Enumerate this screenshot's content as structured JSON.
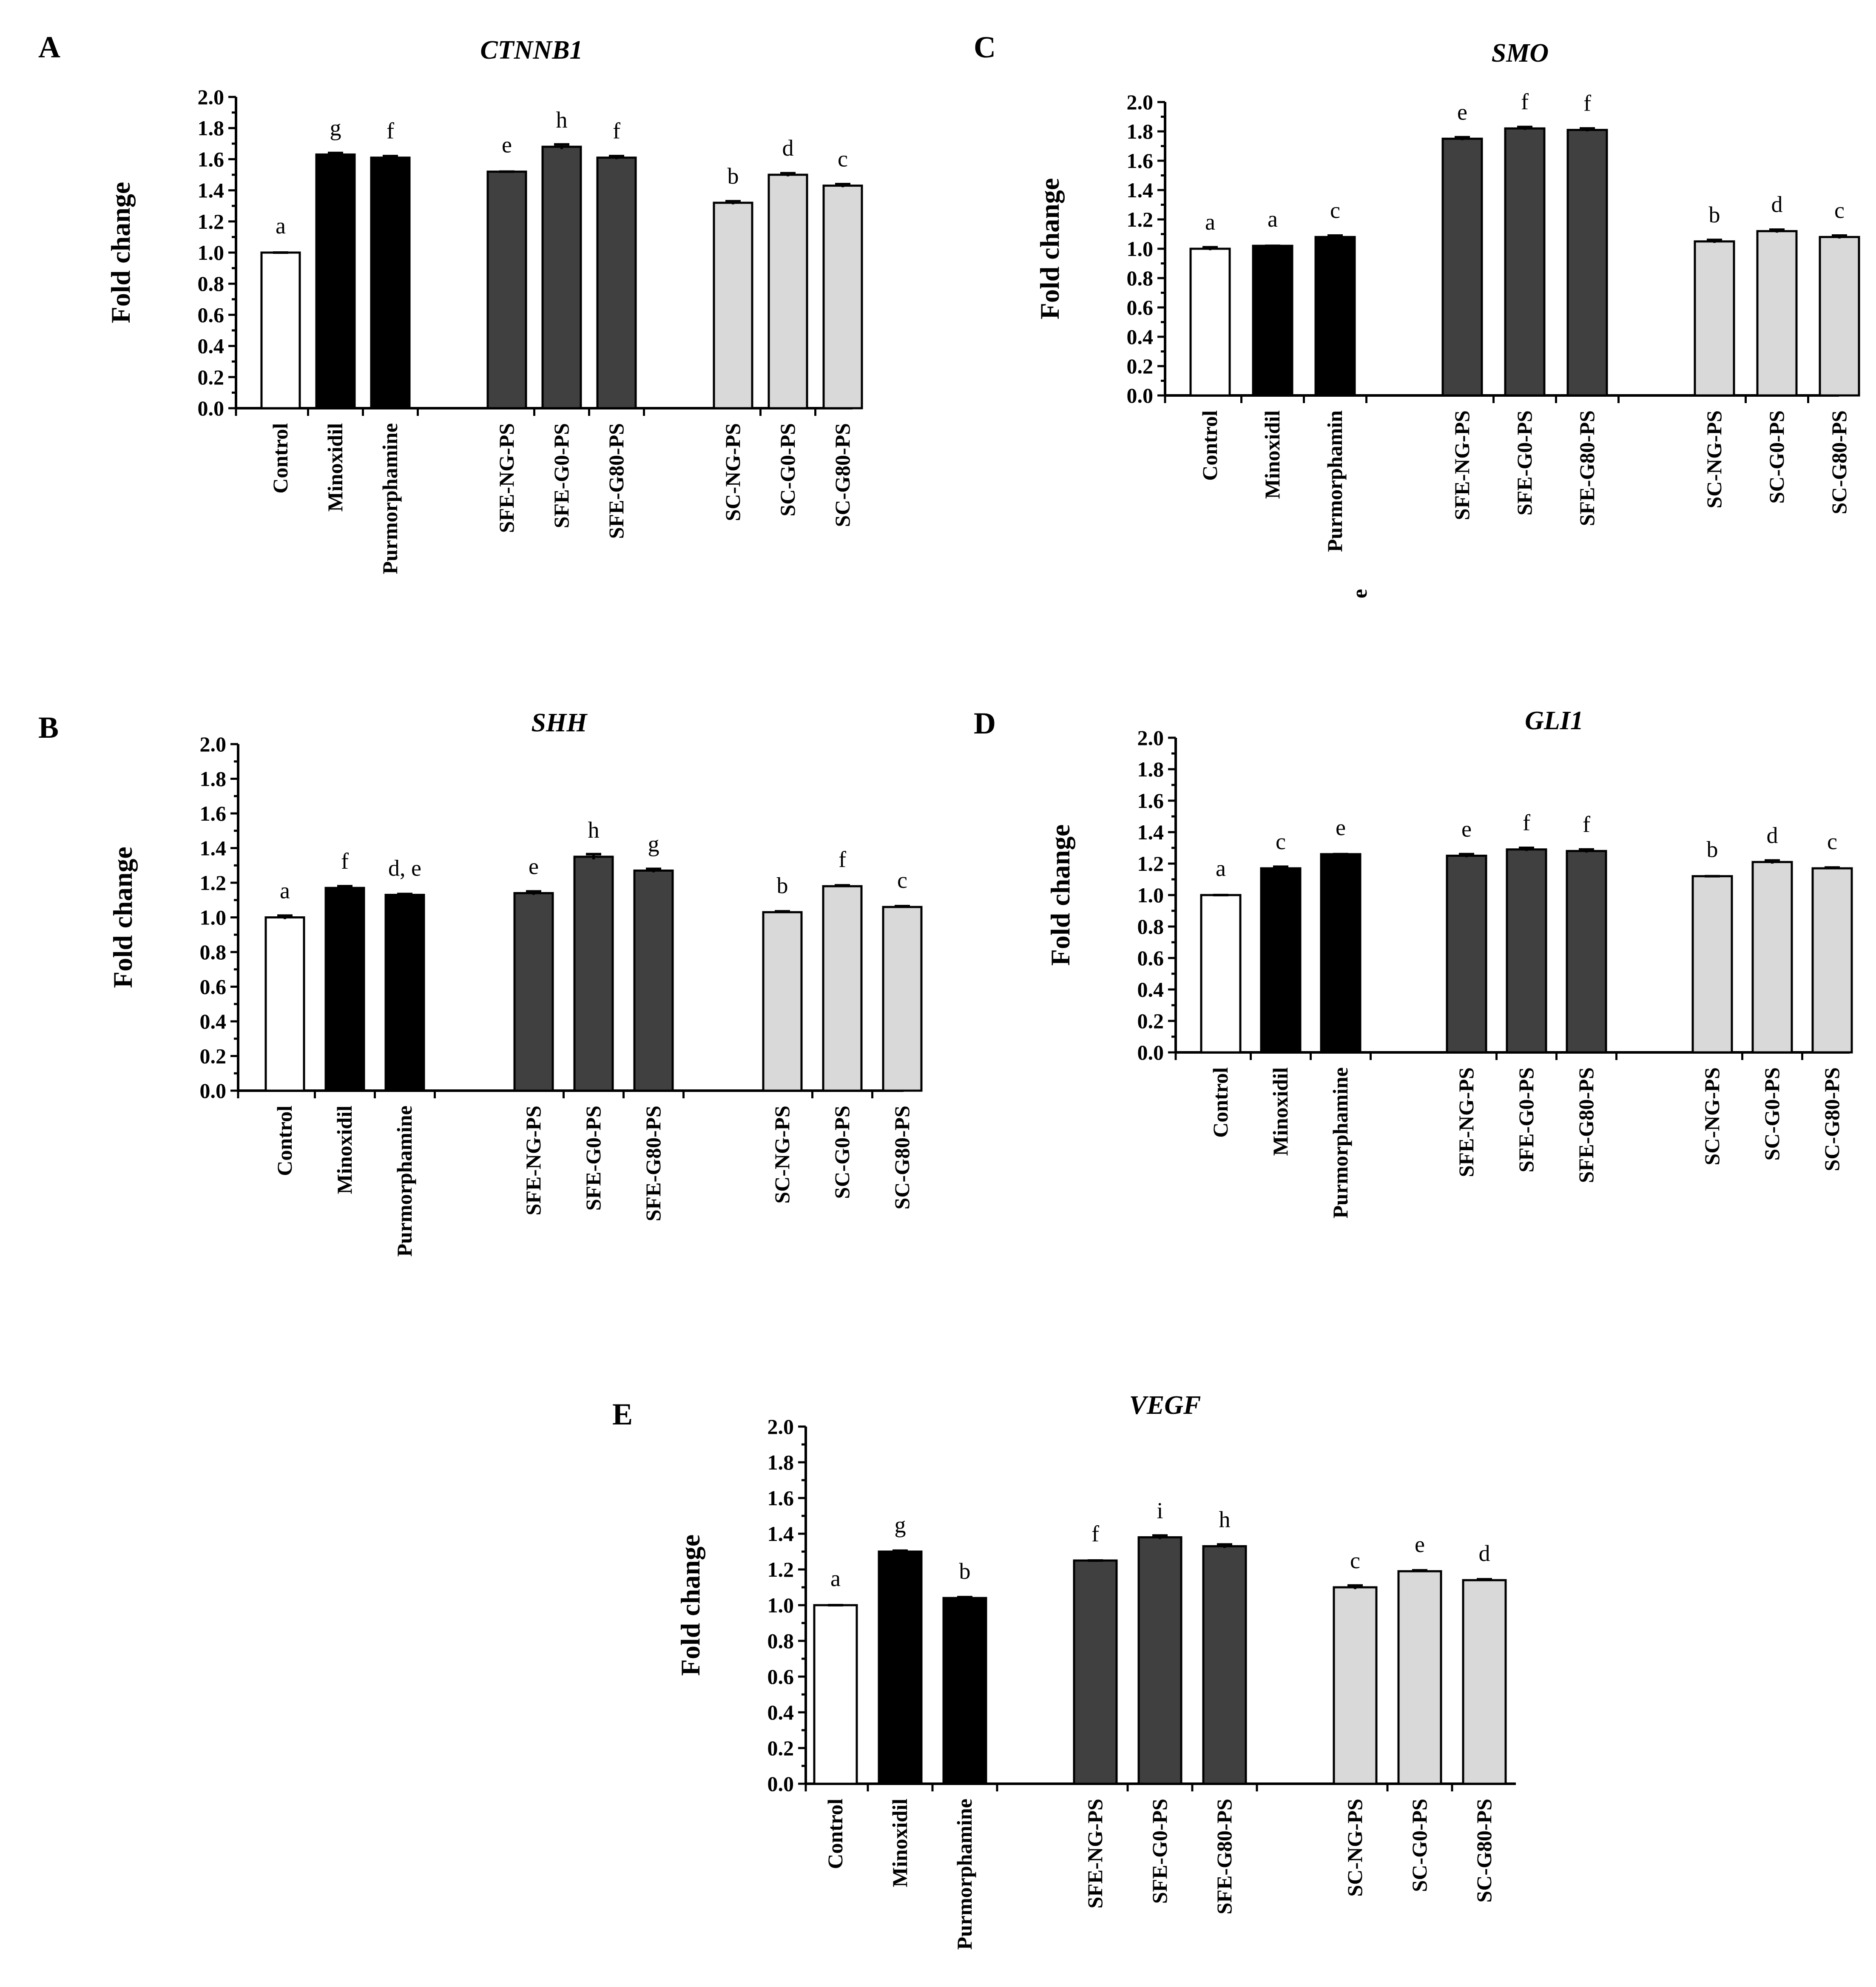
{
  "figure": {
    "background": "#ffffff"
  },
  "colors": {
    "Control": "#ffffff",
    "Minoxidil": "#000000",
    "Purmorphamine": "#000000",
    "SFE": "#404040",
    "SC": "#d9d9d9"
  },
  "chart_data": [
    {
      "panel": "A",
      "title": "CTNNB1",
      "type": "bar",
      "ylabel": "Fold change",
      "xlabel": "",
      "ylim": [
        0,
        2.0
      ],
      "yticks": [
        "0.0",
        "0.2",
        "0.4",
        "0.6",
        "0.8",
        "1.0",
        "1.2",
        "1.4",
        "1.6",
        "1.8",
        "2.0"
      ],
      "grid": false,
      "categories": [
        "Control",
        "Minoxidil",
        "Purmorphamine",
        "SFE-NG-PS",
        "SFE-G0-PS",
        "SFE-G80-PS",
        "SC-NG-PS",
        "SC-G0-PS",
        "SC-G80-PS"
      ],
      "groups": [
        3,
        3,
        3
      ],
      "values": [
        1.0,
        1.63,
        1.61,
        1.52,
        1.68,
        1.61,
        1.32,
        1.5,
        1.43
      ],
      "errors": [
        0.0,
        0.01,
        0.01,
        0.0,
        0.015,
        0.01,
        0.01,
        0.01,
        0.01
      ],
      "letters": [
        "a",
        "g",
        "f",
        "e",
        "h",
        "f",
        "b",
        "d",
        "c"
      ],
      "fills": [
        "#ffffff",
        "#000000",
        "#000000",
        "#404040",
        "#404040",
        "#404040",
        "#d9d9d9",
        "#d9d9d9",
        "#d9d9d9"
      ]
    },
    {
      "panel": "B",
      "title": "SHH",
      "type": "bar",
      "ylabel": "Fold change",
      "xlabel": "",
      "ylim": [
        0,
        2.0
      ],
      "yticks": [
        "0.0",
        "0.2",
        "0.4",
        "0.6",
        "0.8",
        "1.0",
        "1.2",
        "1.4",
        "1.6",
        "1.8",
        "2.0"
      ],
      "grid": false,
      "categories": [
        "Control",
        "Minoxidil",
        "Purmorphamine",
        "SFE-NG-PS",
        "SFE-G0-PS",
        "SFE-G80-PS",
        "SC-NG-PS",
        "SC-G0-PS",
        "SC-G80-PS"
      ],
      "groups": [
        3,
        3,
        3
      ],
      "values": [
        1.0,
        1.17,
        1.13,
        1.14,
        1.35,
        1.27,
        1.03,
        1.18,
        1.06
      ],
      "errors": [
        0.01,
        0.01,
        0.005,
        0.01,
        0.015,
        0.01,
        0.005,
        0.005,
        0.005
      ],
      "letters": [
        "a",
        "f",
        "d, e",
        "e",
        "h",
        "g",
        "b",
        "f",
        "c"
      ],
      "fills": [
        "#ffffff",
        "#000000",
        "#000000",
        "#404040",
        "#404040",
        "#404040",
        "#d9d9d9",
        "#d9d9d9",
        "#d9d9d9"
      ]
    },
    {
      "panel": "C",
      "title": "SMO",
      "type": "bar",
      "ylabel": "Fold change",
      "xlabel": "",
      "ylim": [
        0,
        2.0
      ],
      "yticks": [
        "0.0",
        "0.2",
        "0.4",
        "0.6",
        "0.8",
        "1.0",
        "1.2",
        "1.4",
        "1.6",
        "1.8",
        "2.0"
      ],
      "grid": false,
      "categories": [
        "Control",
        "Minoxidil",
        "Purmorphamin\ne",
        "SFE-NG-PS",
        "SFE-G0-PS",
        "SFE-G80-PS",
        "SC-NG-PS",
        "SC-G0-PS",
        "SC-G80-PS"
      ],
      "groups": [
        3,
        3,
        3
      ],
      "values": [
        1.0,
        1.02,
        1.08,
        1.75,
        1.82,
        1.81,
        1.05,
        1.12,
        1.08
      ],
      "errors": [
        0.01,
        0.0,
        0.01,
        0.01,
        0.01,
        0.01,
        0.01,
        0.01,
        0.01
      ],
      "letters": [
        "a",
        "a",
        "c",
        "e",
        "f",
        "f",
        "b",
        "d",
        "c"
      ],
      "fills": [
        "#ffffff",
        "#000000",
        "#000000",
        "#404040",
        "#404040",
        "#404040",
        "#d9d9d9",
        "#d9d9d9",
        "#d9d9d9"
      ]
    },
    {
      "panel": "D",
      "title": "GLI1",
      "type": "bar",
      "ylabel": "Fold change",
      "xlabel": "",
      "ylim": [
        0,
        2.0
      ],
      "yticks": [
        "0.0",
        "0.2",
        "0.4",
        "0.6",
        "0.8",
        "1.0",
        "1.2",
        "1.4",
        "1.6",
        "1.8",
        "2.0"
      ],
      "grid": false,
      "categories": [
        "Control",
        "Minoxidil",
        "Purmorphamine",
        "SFE-NG-PS",
        "SFE-G0-PS",
        "SFE-G80-PS",
        "SC-NG-PS",
        "SC-G0-PS",
        "SC-G80-PS"
      ],
      "groups": [
        3,
        3,
        3
      ],
      "values": [
        1.0,
        1.17,
        1.26,
        1.25,
        1.29,
        1.28,
        1.12,
        1.21,
        1.17
      ],
      "errors": [
        0.0,
        0.01,
        0.0,
        0.01,
        0.01,
        0.01,
        0.0,
        0.01,
        0.005
      ],
      "letters": [
        "a",
        "c",
        "e",
        "e",
        "f",
        "f",
        "b",
        "d",
        "c"
      ],
      "fills": [
        "#ffffff",
        "#000000",
        "#000000",
        "#404040",
        "#404040",
        "#404040",
        "#d9d9d9",
        "#d9d9d9",
        "#d9d9d9"
      ]
    },
    {
      "panel": "E",
      "title": "VEGF",
      "type": "bar",
      "ylabel": "Fold change",
      "xlabel": "",
      "ylim": [
        0,
        2.0
      ],
      "yticks": [
        "0.0",
        "0.2",
        "0.4",
        "0.6",
        "0.8",
        "1.0",
        "1.2",
        "1.4",
        "1.6",
        "1.8",
        "2.0"
      ],
      "grid": false,
      "categories": [
        "Control",
        "Minoxidil",
        "Purmorphamine",
        "SFE-NG-PS",
        "SFE-G0-PS",
        "SFE-G80-PS",
        "SC-NG-PS",
        "SC-G0-PS",
        "SC-G80-PS"
      ],
      "groups": [
        3,
        3,
        3
      ],
      "values": [
        1.0,
        1.3,
        1.04,
        1.25,
        1.38,
        1.33,
        1.1,
        1.19,
        1.14
      ],
      "errors": [
        0.0,
        0.005,
        0.005,
        0.0,
        0.01,
        0.01,
        0.01,
        0.005,
        0.005
      ],
      "letters": [
        "a",
        "g",
        "b",
        "f",
        "i",
        "h",
        "c",
        "e",
        "d"
      ],
      "fills": [
        "#ffffff",
        "#000000",
        "#000000",
        "#404040",
        "#404040",
        "#404040",
        "#d9d9d9",
        "#d9d9d9",
        "#d9d9d9"
      ]
    }
  ]
}
